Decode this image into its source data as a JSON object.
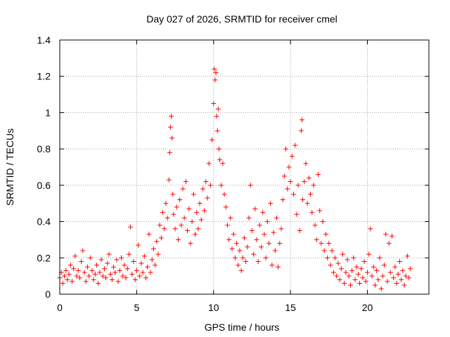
{
  "chart_data": {
    "type": "scatter",
    "title": "Day 027 of 2026, SRMTID for receiver cmel",
    "xlabel": "GPS time / hours",
    "ylabel": "SRMTID / TECUs",
    "xlim": [
      0,
      24
    ],
    "ylim": [
      0,
      1.4
    ],
    "xticks": [
      0,
      5,
      10,
      15,
      20
    ],
    "xtick_labels": [
      "0",
      "5",
      "10",
      "15",
      "20"
    ],
    "yticks": [
      0,
      0.2,
      0.4,
      0.6,
      0.8,
      1,
      1.2,
      1.4
    ],
    "ytick_labels": [
      "0",
      "0.2",
      "0.4",
      "0.6",
      "0.8",
      "1",
      "1.2",
      "1.4"
    ],
    "grid": true,
    "marker": "+",
    "series": [
      {
        "name": "SRMTID",
        "color": "#ff0000",
        "points": [
          [
            0.0,
            0.09
          ],
          [
            0.1,
            0.12
          ],
          [
            0.2,
            0.06
          ],
          [
            0.3,
            0.1
          ],
          [
            0.4,
            0.13
          ],
          [
            0.5,
            0.08
          ],
          [
            0.6,
            0.11
          ],
          [
            0.7,
            0.16
          ],
          [
            0.8,
            0.07
          ],
          [
            0.9,
            0.14
          ],
          [
            1.0,
            0.21
          ],
          [
            1.1,
            0.1
          ],
          [
            1.2,
            0.13
          ],
          [
            1.3,
            0.09
          ],
          [
            1.4,
            0.18
          ],
          [
            1.5,
            0.24
          ],
          [
            1.6,
            0.12
          ],
          [
            1.7,
            0.07
          ],
          [
            1.8,
            0.15
          ],
          [
            1.9,
            0.1
          ],
          [
            2.0,
            0.2
          ],
          [
            2.1,
            0.13
          ],
          [
            2.2,
            0.08
          ],
          [
            2.3,
            0.11
          ],
          [
            2.4,
            0.16
          ],
          [
            2.5,
            0.06
          ],
          [
            2.6,
            0.12
          ],
          [
            2.7,
            0.19
          ],
          [
            2.8,
            0.1
          ],
          [
            2.9,
            0.14
          ],
          [
            3.0,
            0.09
          ],
          [
            3.1,
            0.17
          ],
          [
            3.2,
            0.22
          ],
          [
            3.3,
            0.11
          ],
          [
            3.4,
            0.08
          ],
          [
            3.5,
            0.15
          ],
          [
            3.6,
            0.12
          ],
          [
            3.7,
            0.19
          ],
          [
            3.8,
            0.07
          ],
          [
            3.9,
            0.13
          ],
          [
            4.0,
            0.2
          ],
          [
            4.1,
            0.1
          ],
          [
            4.2,
            0.16
          ],
          [
            4.3,
            0.09
          ],
          [
            4.4,
            0.14
          ],
          [
            4.5,
            0.22
          ],
          [
            4.6,
            0.37
          ],
          [
            4.7,
            0.11
          ],
          [
            4.8,
            0.18
          ],
          [
            4.9,
            0.08
          ],
          [
            5.0,
            0.13
          ],
          [
            5.1,
            0.27
          ],
          [
            5.2,
            0.1
          ],
          [
            5.3,
            0.17
          ],
          [
            5.4,
            0.12
          ],
          [
            5.5,
            0.21
          ],
          [
            5.6,
            0.09
          ],
          [
            5.7,
            0.15
          ],
          [
            5.8,
            0.33
          ],
          [
            5.9,
            0.12
          ],
          [
            6.0,
            0.19
          ],
          [
            6.1,
            0.25
          ],
          [
            6.2,
            0.16
          ],
          [
            6.3,
            0.29
          ],
          [
            6.4,
            0.22
          ],
          [
            6.5,
            0.38
          ],
          [
            6.6,
            0.31
          ],
          [
            6.7,
            0.45
          ],
          [
            6.8,
            0.36
          ],
          [
            6.9,
            0.5
          ],
          [
            7.0,
            0.42
          ],
          [
            7.1,
            0.63
          ],
          [
            7.15,
            0.78
          ],
          [
            7.2,
            0.92
          ],
          [
            7.25,
            0.98
          ],
          [
            7.3,
            0.86
          ],
          [
            7.35,
            0.55
          ],
          [
            7.4,
            0.44
          ],
          [
            7.5,
            0.36
          ],
          [
            7.6,
            0.48
          ],
          [
            7.7,
            0.3
          ],
          [
            7.8,
            0.52
          ],
          [
            7.9,
            0.38
          ],
          [
            8.0,
            0.58
          ],
          [
            8.1,
            0.42
          ],
          [
            8.2,
            0.62
          ],
          [
            8.3,
            0.35
          ],
          [
            8.4,
            0.47
          ],
          [
            8.5,
            0.28
          ],
          [
            8.6,
            0.4
          ],
          [
            8.7,
            0.55
          ],
          [
            8.8,
            0.33
          ],
          [
            8.9,
            0.45
          ],
          [
            9.0,
            0.36
          ],
          [
            9.1,
            0.5
          ],
          [
            9.2,
            0.41
          ],
          [
            9.3,
            0.58
          ],
          [
            9.4,
            0.46
          ],
          [
            9.5,
            0.62
          ],
          [
            9.6,
            0.53
          ],
          [
            9.7,
            0.72
          ],
          [
            9.8,
            0.6
          ],
          [
            9.9,
            0.85
          ],
          [
            10.0,
            1.05
          ],
          [
            10.05,
            1.24
          ],
          [
            10.1,
            1.18
          ],
          [
            10.15,
            1.22
          ],
          [
            10.2,
            0.98
          ],
          [
            10.25,
            0.9
          ],
          [
            10.3,
            1.02
          ],
          [
            10.35,
            0.8
          ],
          [
            10.4,
            0.74
          ],
          [
            10.5,
            0.6
          ],
          [
            10.6,
            0.72
          ],
          [
            10.7,
            0.55
          ],
          [
            10.8,
            0.48
          ],
          [
            10.9,
            0.38
          ],
          [
            11.0,
            0.3
          ],
          [
            11.1,
            0.42
          ],
          [
            11.2,
            0.25
          ],
          [
            11.3,
            0.33
          ],
          [
            11.4,
            0.2
          ],
          [
            11.5,
            0.28
          ],
          [
            11.6,
            0.16
          ],
          [
            11.7,
            0.24
          ],
          [
            11.8,
            0.13
          ],
          [
            11.9,
            0.2
          ],
          [
            12.0,
            0.31
          ],
          [
            12.1,
            0.18
          ],
          [
            12.2,
            0.26
          ],
          [
            12.3,
            0.42
          ],
          [
            12.4,
            0.6
          ],
          [
            12.5,
            0.35
          ],
          [
            12.6,
            0.22
          ],
          [
            12.7,
            0.47
          ],
          [
            12.8,
            0.3
          ],
          [
            12.9,
            0.18
          ],
          [
            13.0,
            0.38
          ],
          [
            13.1,
            0.26
          ],
          [
            13.2,
            0.45
          ],
          [
            13.3,
            0.33
          ],
          [
            13.4,
            0.2
          ],
          [
            13.5,
            0.4
          ],
          [
            13.6,
            0.28
          ],
          [
            13.7,
            0.5
          ],
          [
            13.8,
            0.16
          ],
          [
            13.9,
            0.34
          ],
          [
            14.0,
            0.24
          ],
          [
            14.1,
            0.42
          ],
          [
            14.2,
            0.15
          ],
          [
            14.3,
            0.28
          ],
          [
            14.4,
            0.36
          ],
          [
            14.5,
            0.52
          ],
          [
            14.6,
            0.65
          ],
          [
            14.7,
            0.8
          ],
          [
            14.8,
            0.58
          ],
          [
            14.9,
            0.7
          ],
          [
            15.0,
            0.62
          ],
          [
            15.1,
            0.76
          ],
          [
            15.2,
            0.55
          ],
          [
            15.3,
            0.82
          ],
          [
            15.4,
            0.44
          ],
          [
            15.5,
            0.6
          ],
          [
            15.6,
            0.35
          ],
          [
            15.7,
            0.9
          ],
          [
            15.75,
            0.96
          ],
          [
            15.8,
            0.52
          ],
          [
            15.9,
            0.62
          ],
          [
            16.0,
            0.72
          ],
          [
            16.1,
            0.5
          ],
          [
            16.2,
            0.64
          ],
          [
            16.3,
            0.55
          ],
          [
            16.4,
            0.45
          ],
          [
            16.5,
            0.6
          ],
          [
            16.6,
            0.38
          ],
          [
            16.7,
            0.3
          ],
          [
            16.8,
            0.66
          ],
          [
            16.9,
            0.46
          ],
          [
            17.0,
            0.28
          ],
          [
            17.1,
            0.4
          ],
          [
            17.2,
            0.24
          ],
          [
            17.3,
            0.33
          ],
          [
            17.4,
            0.2
          ],
          [
            17.5,
            0.28
          ],
          [
            17.6,
            0.16
          ],
          [
            17.7,
            0.24
          ],
          [
            17.8,
            0.12
          ],
          [
            17.9,
            0.2
          ],
          [
            18.0,
            0.1
          ],
          [
            18.1,
            0.17
          ],
          [
            18.2,
            0.08
          ],
          [
            18.3,
            0.14
          ],
          [
            18.4,
            0.22
          ],
          [
            18.5,
            0.06
          ],
          [
            18.6,
            0.12
          ],
          [
            18.7,
            0.19
          ],
          [
            18.8,
            0.1
          ],
          [
            18.9,
            0.05
          ],
          [
            19.0,
            0.13
          ],
          [
            19.1,
            0.2
          ],
          [
            19.2,
            0.08
          ],
          [
            19.3,
            0.15
          ],
          [
            19.4,
            0.11
          ],
          [
            19.5,
            0.06
          ],
          [
            19.6,
            0.14
          ],
          [
            19.7,
            0.09
          ],
          [
            19.8,
            0.18
          ],
          [
            19.9,
            0.07
          ],
          [
            20.0,
            0.12
          ],
          [
            20.1,
            0.22
          ],
          [
            20.2,
            0.36
          ],
          [
            20.3,
            0.1
          ],
          [
            20.4,
            0.15
          ],
          [
            20.5,
            0.05
          ],
          [
            20.6,
            0.13
          ],
          [
            20.7,
            0.08
          ],
          [
            20.8,
            0.2
          ],
          [
            20.9,
            0.03
          ],
          [
            21.0,
            0.1
          ],
          [
            21.1,
            0.16
          ],
          [
            21.2,
            0.33
          ],
          [
            21.3,
            0.07
          ],
          [
            21.4,
            0.28
          ],
          [
            21.5,
            0.12
          ],
          [
            21.6,
            0.32
          ],
          [
            21.7,
            0.09
          ],
          [
            21.8,
            0.15
          ],
          [
            21.9,
            0.06
          ],
          [
            22.0,
            0.11
          ],
          [
            22.1,
            0.18
          ],
          [
            22.2,
            0.08
          ],
          [
            22.3,
            0.13
          ],
          [
            22.4,
            0.05
          ],
          [
            22.5,
            0.1
          ],
          [
            22.6,
            0.21
          ],
          [
            22.7,
            0.09
          ],
          [
            22.8,
            0.14
          ]
        ]
      }
    ]
  }
}
